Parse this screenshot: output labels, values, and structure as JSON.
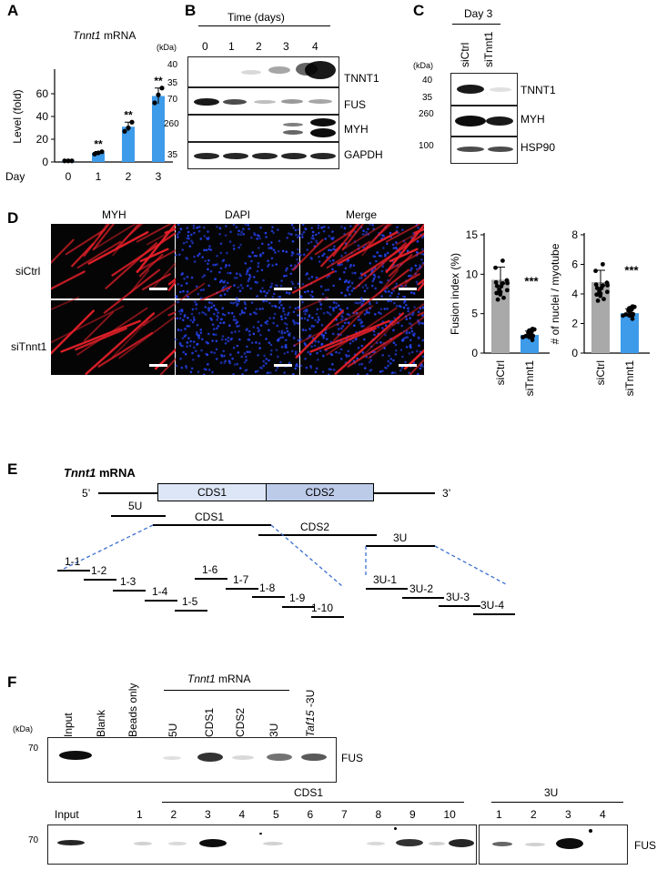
{
  "panel_labels": {
    "a": "A",
    "b": "B",
    "c": "C",
    "d": "D",
    "e": "E",
    "f": "F"
  },
  "panel_a": {
    "title_gene": "Tnnt1",
    "title_rest": " mRNA",
    "ylabel": "Level (fold)",
    "xlabel": "Day",
    "yticks": [
      "0",
      "20",
      "40",
      "60"
    ],
    "significance": [
      "**",
      "**",
      "**"
    ],
    "chart_data": {
      "type": "bar",
      "title": "Tnnt1 mRNA",
      "categories": [
        "0",
        "1",
        "2",
        "3"
      ],
      "values": [
        1,
        8,
        31,
        58
      ],
      "errors": [
        0.3,
        1.2,
        4,
        7
      ],
      "points": [
        [
          1,
          1,
          1
        ],
        [
          7,
          8,
          9
        ],
        [
          27,
          30,
          35
        ],
        [
          52,
          59,
          65
        ]
      ],
      "ylim": [
        0,
        80
      ],
      "xlabel": "Day",
      "ylabel": "Level (fold)",
      "bar_color": "#3d9be9"
    }
  },
  "panel_b": {
    "header": "Time (days)",
    "kda": "(kDa)",
    "lanes": [
      "0",
      "1",
      "2",
      "3",
      "4"
    ],
    "rows": [
      {
        "name": "TNNT1",
        "markers": [
          "40",
          "35"
        ]
      },
      {
        "name": "FUS",
        "markers": [
          "70"
        ]
      },
      {
        "name": "MYH",
        "markers": [
          "260"
        ]
      },
      {
        "name": "GAPDH",
        "markers": [
          "35"
        ]
      }
    ]
  },
  "panel_c": {
    "header": "Day 3",
    "kda": "(kDa)",
    "lanes": [
      "siCtrl",
      "siTnnt1"
    ],
    "rows": [
      {
        "name": "TNNT1",
        "markers": [
          "40",
          "35"
        ]
      },
      {
        "name": "MYH",
        "markers": [
          "260"
        ]
      },
      {
        "name": "HSP90",
        "markers": [
          "100"
        ]
      }
    ]
  },
  "panel_d": {
    "columns": [
      "MYH",
      "DAPI",
      "Merge"
    ],
    "rows": [
      "siCtrl",
      "siTnnt1"
    ],
    "fusion": {
      "ylabel": "Fusion index (%)",
      "yticks": [
        "0",
        "5",
        "10",
        "15"
      ],
      "significance": "***",
      "chart_data": {
        "type": "bar",
        "categories": [
          "siCtrl",
          "siTnnt1"
        ],
        "values": [
          9.3,
          2.3
        ],
        "errors": [
          1.6,
          0.5
        ],
        "ylim": [
          0,
          15
        ],
        "ylabel": "Fusion index (%)",
        "colors": [
          "#a9a9a9",
          "#3d9be9"
        ]
      }
    },
    "nuclei": {
      "ylabel": "# of nuclei / myotube",
      "yticks": [
        "0",
        "2",
        "4",
        "6",
        "8"
      ],
      "significance": "***",
      "chart_data": {
        "type": "bar",
        "categories": [
          "siCtrl",
          "siTnnt1"
        ],
        "values": [
          4.8,
          2.7
        ],
        "errors": [
          0.8,
          0.3
        ],
        "ylim": [
          0,
          8
        ],
        "ylabel": "# of nuclei / myotube",
        "colors": [
          "#a9a9a9",
          "#3d9be9"
        ]
      }
    }
  },
  "panel_e": {
    "title_gene": "Tnnt1",
    "title_rest": " mRNA",
    "five_prime": "5’",
    "three_prime": "3’",
    "boxes": [
      "CDS1",
      "CDS2"
    ],
    "fragments": [
      "5U",
      "CDS1",
      "CDS2",
      "3U"
    ],
    "cds1_sub": [
      "1-1",
      "1-2",
      "1-3",
      "1-4",
      "1-5",
      "1-6",
      "1-7",
      "1-8",
      "1-9",
      "1-10"
    ],
    "u3_sub": [
      "3U-1",
      "3U-2",
      "3U-3",
      "3U-4"
    ]
  },
  "panel_f": {
    "kda": "(kDa)",
    "marker": "70",
    "group_label_gene": "Tnnt1",
    "group_label_rest": " mRNA",
    "top_lanes": [
      "Input",
      "Blank",
      "Beads only",
      "5U",
      "CDS1",
      "CDS2",
      "3U"
    ],
    "taf_gene": "Taf15",
    "taf_rest": " -3U",
    "protein": "FUS",
    "bottom_group1": "CDS1",
    "bottom_group2": "3U",
    "bottom_input": "Input",
    "bottom_lanes1": [
      "1",
      "2",
      "3",
      "4",
      "5",
      "6",
      "7",
      "8",
      "9",
      "10"
    ],
    "bottom_lanes2": [
      "1",
      "2",
      "3",
      "4"
    ]
  }
}
